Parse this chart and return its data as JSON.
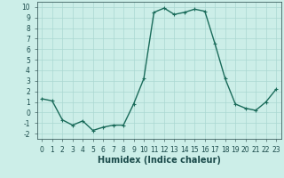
{
  "x": [
    0,
    1,
    2,
    3,
    4,
    5,
    6,
    7,
    8,
    9,
    10,
    11,
    12,
    13,
    14,
    15,
    16,
    17,
    18,
    19,
    20,
    21,
    22,
    23
  ],
  "y": [
    1.3,
    1.1,
    -0.7,
    -1.2,
    -0.8,
    -1.7,
    -1.4,
    -1.2,
    -1.2,
    0.8,
    3.2,
    9.5,
    9.9,
    9.3,
    9.5,
    9.8,
    9.6,
    6.5,
    3.2,
    0.8,
    0.4,
    0.2,
    1.0,
    2.2
  ],
  "line_color": "#1a6b5a",
  "marker": "+",
  "marker_size": 3,
  "line_width": 1.0,
  "bg_color": "#cceee8",
  "grid_color": "#aad8d2",
  "xlabel": "Humidex (Indice chaleur)",
  "xlim": [
    -0.5,
    23.5
  ],
  "ylim": [
    -2.5,
    10.5
  ],
  "yticks": [
    -2,
    -1,
    0,
    1,
    2,
    3,
    4,
    5,
    6,
    7,
    8,
    9,
    10
  ],
  "xticks": [
    0,
    1,
    2,
    3,
    4,
    5,
    6,
    7,
    8,
    9,
    10,
    11,
    12,
    13,
    14,
    15,
    16,
    17,
    18,
    19,
    20,
    21,
    22,
    23
  ],
  "tick_fontsize": 5.5,
  "xlabel_fontsize": 7,
  "spine_color": "#406060"
}
